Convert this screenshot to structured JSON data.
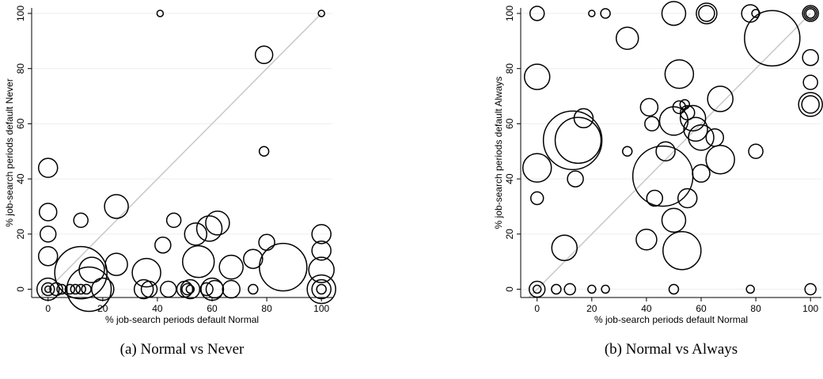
{
  "chart_data": [
    {
      "type": "scatter",
      "caption": "(a) Normal vs Never",
      "xlabel": "% job-search periods default Normal",
      "ylabel": "% job-search periods default Never",
      "xlim": [
        -6,
        104
      ],
      "ylim": [
        -3,
        102
      ],
      "xticks": [
        0,
        20,
        40,
        60,
        80,
        100
      ],
      "yticks": [
        0,
        20,
        40,
        60,
        80,
        100
      ],
      "grid": true,
      "color": "#000000",
      "x": [
        0,
        0,
        0,
        0,
        0,
        0,
        0,
        3,
        5,
        8,
        10,
        12,
        14,
        12,
        15,
        16,
        20,
        12,
        25,
        25,
        36,
        35,
        37,
        41,
        42,
        44,
        46,
        50,
        51,
        52,
        52,
        54,
        55,
        58,
        59,
        62,
        60,
        61,
        67,
        67,
        75,
        75,
        79,
        79,
        80,
        86,
        100,
        100,
        100,
        100,
        100,
        100,
        100
      ],
      "y": [
        44,
        28,
        20,
        12,
        0,
        0,
        0,
        0,
        0,
        0,
        0,
        0,
        0,
        6,
        0,
        7,
        0,
        25,
        30,
        9,
        6,
        0,
        0,
        100,
        16,
        0,
        25,
        0,
        0,
        0,
        0,
        20,
        10,
        0,
        22,
        24,
        0,
        0,
        8,
        0,
        11,
        0,
        85,
        50,
        17,
        8,
        100,
        20,
        14,
        7,
        0,
        0,
        0
      ],
      "sizes": [
        144,
        121,
        100,
        144,
        196,
        64,
        16,
        64,
        36,
        36,
        36,
        36,
        36,
        1089,
        784,
        256,
        196,
        81,
        225,
        196,
        324,
        144,
        100,
        16,
        100,
        100,
        81,
        100,
        49,
        25,
        144,
        196,
        400,
        64,
        256,
        225,
        196,
        121,
        225,
        121,
        144,
        36,
        121,
        36,
        100,
        900,
        16,
        144,
        144,
        256,
        324,
        144,
        36
      ]
    },
    {
      "type": "scatter",
      "caption": "(b) Normal vs Always",
      "xlabel": "% job-search periods default Normal",
      "ylabel": "% job-search periods default Always",
      "xlim": [
        -6,
        104
      ],
      "ylim": [
        -3,
        102
      ],
      "xticks": [
        0,
        20,
        40,
        60,
        80,
        100
      ],
      "yticks": [
        0,
        20,
        40,
        60,
        80,
        100
      ],
      "grid": true,
      "color": "#000000",
      "x": [
        0,
        0,
        0,
        0,
        0,
        0,
        7,
        12,
        20,
        25,
        20,
        25,
        10,
        13,
        15,
        14,
        17,
        33,
        33,
        40,
        41,
        42,
        43,
        46,
        47,
        50,
        50,
        50,
        50,
        52,
        52,
        53,
        54,
        55,
        55,
        57,
        58,
        60,
        60,
        62,
        62,
        65,
        67,
        67,
        78,
        80,
        78,
        80,
        86,
        100,
        100,
        100,
        100,
        100,
        100,
        100,
        100
      ],
      "y": [
        100,
        77,
        44,
        33,
        0,
        0,
        0,
        0,
        0,
        0,
        100,
        100,
        15,
        54,
        54,
        40,
        62,
        91,
        50,
        18,
        66,
        60,
        33,
        41,
        50,
        100,
        61,
        25,
        0,
        78,
        66,
        14,
        67,
        33,
        64,
        62,
        58,
        55,
        42,
        100,
        100,
        55,
        69,
        47,
        100,
        100,
        0,
        50,
        91,
        100,
        100,
        100,
        84,
        75,
        67,
        67,
        0
      ],
      "sizes": [
        81,
        256,
        324,
        64,
        100,
        25,
        36,
        49,
        25,
        25,
        16,
        36,
        256,
        1369,
        841,
        100,
        144,
        196,
        36,
        169,
        121,
        81,
        100,
        1444,
        144,
        225,
        324,
        225,
        36,
        324,
        64,
        576,
        36,
        144,
        81,
        256,
        225,
        256,
        121,
        169,
        100,
        121,
        256,
        324,
        121,
        25,
        25,
        81,
        1225,
        100,
        64,
        36,
        100,
        81,
        121,
        225,
        49
      ]
    }
  ]
}
